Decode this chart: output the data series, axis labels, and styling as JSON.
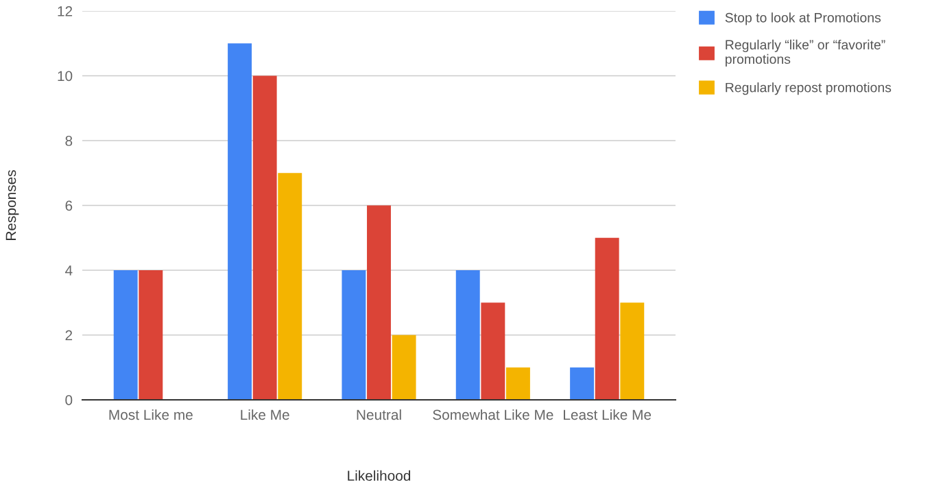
{
  "chart_data": {
    "type": "bar",
    "xlabel": "Likelihood",
    "ylabel": "Responses",
    "categories": [
      "Most Like me",
      "Like Me",
      "Neutral",
      "Somewhat Like Me",
      "Least Like Me"
    ],
    "series": [
      {
        "name": "Stop to look at Promotions",
        "color": "#4285f4",
        "values": [
          4,
          11,
          4,
          4,
          1
        ]
      },
      {
        "name": "Regularly “like” or “favorite” promotions",
        "color": "#db4437",
        "values": [
          4,
          10,
          6,
          3,
          5
        ]
      },
      {
        "name": "Regularly repost promotions",
        "color": "#f4b400",
        "values": [
          0,
          7,
          2,
          1,
          3
        ]
      }
    ],
    "ylim": [
      0,
      12
    ],
    "yticks": [
      0,
      2,
      4,
      6,
      8,
      10,
      12
    ],
    "grid": "y",
    "legend": "top right"
  }
}
